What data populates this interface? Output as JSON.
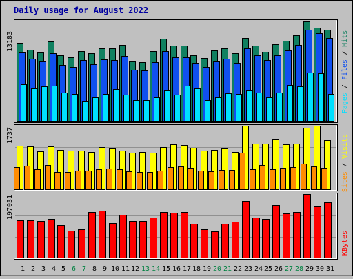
{
  "title": "Daily usage for August 2022",
  "colors": {
    "background": "#c0c0c0",
    "title": "#0000a0",
    "hits": "#108060",
    "files": "#1050f0",
    "pages": "#00e0ff",
    "visits": "#ffff00",
    "sites": "#ff8c00",
    "kbytes": "#ff0000",
    "weekend_label": "#008040",
    "weekday_label": "#000000"
  },
  "legend": {
    "pages": "Pages",
    "files": "Files",
    "hits": "Hits",
    "sites": "Sites",
    "visits": "Visits",
    "kbytes": "KBytes",
    "sep": "/"
  },
  "chart_data": {
    "type": "bar",
    "categories": [
      "1",
      "2",
      "3",
      "4",
      "5",
      "6",
      "7",
      "8",
      "9",
      "10",
      "11",
      "12",
      "13",
      "14",
      "15",
      "16",
      "17",
      "18",
      "19",
      "20",
      "21",
      "22",
      "23",
      "24",
      "25",
      "26",
      "27",
      "28",
      "29",
      "30",
      "31"
    ],
    "weekend_days": [
      "6",
      "7",
      "13",
      "14",
      "20",
      "21",
      "27",
      "28"
    ],
    "panels": [
      {
        "name": "hits-files-pages",
        "ymax_label": "13183",
        "ylim": [
          0,
          13183
        ],
        "grid": true,
        "series": [
          {
            "name": "Hits",
            "values": [
              10300,
              9400,
              9000,
              10500,
              8700,
              8400,
              9200,
              8900,
              9600,
              9600,
              10000,
              7900,
              7800,
              9200,
              10800,
              9900,
              9900,
              8700,
              8300,
              9300,
              9600,
              8900,
              10900,
              9900,
              9100,
              10100,
              10600,
              11300,
              13100,
              12300,
              12000
            ]
          },
          {
            "name": "Files",
            "values": [
              9000,
              8200,
              7900,
              8900,
              7400,
              7100,
              8000,
              7500,
              8100,
              8000,
              8600,
              6800,
              6700,
              7800,
              9200,
              8400,
              8400,
              7700,
              7100,
              7900,
              8200,
              7700,
              9600,
              8700,
              8000,
              8700,
              9300,
              10000,
              12000,
              11600,
              10900
            ]
          },
          {
            "name": "Pages",
            "values": [
              4900,
              4300,
              4600,
              4700,
              3800,
              3600,
              2700,
              3200,
              3600,
              4200,
              3500,
              2800,
              2800,
              3200,
              4100,
              3500,
              4700,
              4300,
              2800,
              3200,
              3700,
              3600,
              4100,
              3800,
              3200,
              3800,
              4800,
              4600,
              6400,
              6300,
              3600
            ]
          }
        ]
      },
      {
        "name": "visits-sites",
        "ymax_label": "1737",
        "ylim": [
          0,
          1737
        ],
        "grid": true,
        "series": [
          {
            "name": "Visits",
            "values": [
              1200,
              1170,
              1040,
              1180,
              1090,
              1070,
              1060,
              1030,
              1150,
              1120,
              1060,
              1000,
              1020,
              1010,
              1160,
              1240,
              1210,
              1140,
              1060,
              1080,
              1120,
              1020,
              1740,
              1260,
              1260,
              1380,
              1230,
              1250,
              1690,
              1740,
              1340
            ]
          },
          {
            "name": "Sites",
            "values": [
              620,
              660,
              560,
              670,
              490,
              480,
              520,
              520,
              560,
              580,
              560,
              500,
              490,
              480,
              520,
              610,
              640,
              600,
              520,
              500,
              550,
              540,
              1010,
              560,
              680,
              560,
              600,
              620,
              710,
              630,
              590
            ]
          }
        ]
      },
      {
        "name": "kbytes",
        "ymax_label": "197031",
        "ylim": [
          0,
          197031
        ],
        "grid": true,
        "series": [
          {
            "name": "KBytes",
            "values": [
              117000,
              117000,
              115000,
              121000,
              102000,
              85000,
              90000,
              143000,
              146000,
              107000,
              134000,
              115000,
              115000,
              124000,
              143000,
              140000,
              143000,
              105000,
              89000,
              82000,
              105000,
              113000,
              176000,
              125000,
              121000,
              164000,
              138000,
              143000,
              197000,
              158000,
              172000
            ]
          }
        ]
      }
    ]
  }
}
